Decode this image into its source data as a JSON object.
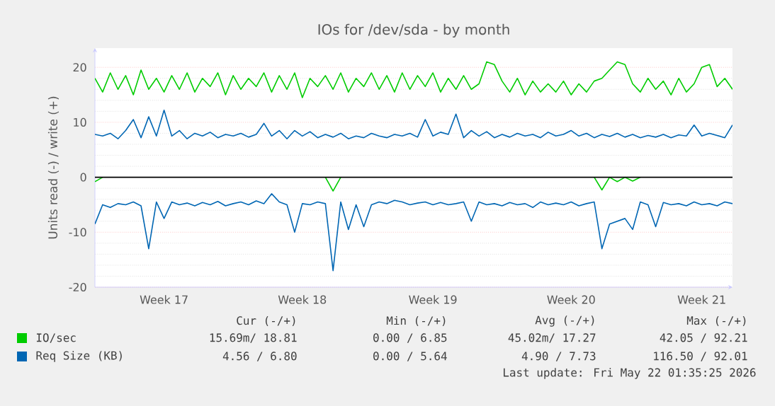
{
  "chart_data": {
    "type": "line",
    "title": "IOs for /dev/sda - by month",
    "ylabel": "Units read (-) / write (+)",
    "categories": [
      null,
      null,
      null,
      null,
      null,
      null,
      null,
      null,
      null,
      "Week 17",
      null,
      null,
      null,
      null,
      null,
      null,
      null,
      null,
      null,
      null,
      null,
      null,
      null,
      null,
      null,
      null,
      null,
      "Week 18",
      null,
      null,
      null,
      null,
      null,
      null,
      null,
      null,
      null,
      null,
      null,
      null,
      null,
      null,
      null,
      null,
      "Week 19",
      null,
      null,
      null,
      null,
      null,
      null,
      null,
      null,
      null,
      null,
      null,
      null,
      null,
      null,
      null,
      null,
      null,
      "Week 20",
      null,
      null,
      null,
      null,
      null,
      null,
      null,
      null,
      null,
      null,
      null,
      null,
      null,
      null,
      null,
      null,
      "Week 21",
      null,
      null,
      null,
      null
    ],
    "series": [
      {
        "name": "IO/sec",
        "color": "#00cc00",
        "values": [
          18,
          15.5,
          19,
          16,
          18.5,
          15,
          19.5,
          16,
          18,
          15.5,
          18.5,
          16,
          19,
          15.5,
          18,
          16.5,
          19,
          15,
          18.5,
          16,
          18,
          16.5,
          19,
          15.5,
          18.5,
          16,
          19,
          14.5,
          18,
          16.5,
          18.5,
          16,
          19,
          15.5,
          18,
          16.5,
          19,
          16,
          18.5,
          15.5,
          19,
          16,
          18.5,
          16.5,
          19,
          15.5,
          18,
          16,
          18.5,
          16,
          17,
          21,
          20.5,
          17.5,
          15.5,
          18,
          15,
          17.5,
          15.5,
          17,
          15.5,
          17.5,
          15,
          17,
          15.5,
          17.5,
          18,
          19.5,
          21,
          20.5,
          17,
          15.5,
          18,
          16,
          17.5,
          15,
          18,
          15.5,
          17,
          20,
          20.5,
          16.5,
          18,
          16
        ]
      },
      {
        "color": "#00cc00",
        "values": [
          -0.8,
          0,
          null,
          null,
          null,
          null,
          null,
          null,
          null,
          null,
          null,
          null,
          null,
          null,
          null,
          null,
          null,
          null,
          null,
          null,
          null,
          null,
          null,
          null,
          null,
          null,
          null,
          null,
          null,
          null,
          0,
          -2.5,
          0,
          null,
          null,
          null,
          null,
          null,
          null,
          null,
          null,
          null,
          null,
          null,
          null,
          null,
          null,
          null,
          null,
          null,
          null,
          null,
          null,
          null,
          null,
          null,
          null,
          null,
          null,
          null,
          null,
          null,
          null,
          null,
          null,
          0,
          -2.3,
          0,
          -0.8,
          0,
          -0.7,
          0,
          null,
          null,
          null,
          null,
          null,
          null,
          null,
          null,
          null,
          null,
          null,
          null
        ]
      },
      {
        "name": "Req Size (KB)",
        "color": "#0066b3",
        "values": [
          7.8,
          7.5,
          8,
          7,
          8.5,
          10.5,
          7.2,
          11,
          7.5,
          12.2,
          7.5,
          8.5,
          7,
          8,
          7.5,
          8.2,
          7.2,
          7.8,
          7.5,
          8,
          7.3,
          7.8,
          9.8,
          7.5,
          8.5,
          7,
          8.5,
          7.5,
          8.3,
          7.2,
          7.8,
          7.3,
          8,
          7,
          7.5,
          7.2,
          8,
          7.5,
          7.2,
          7.8,
          7.5,
          8,
          7.3,
          10.5,
          7.5,
          8.2,
          7.8,
          11.5,
          7.2,
          8.5,
          7.5,
          8.3,
          7.2,
          7.8,
          7.3,
          8,
          7.5,
          7.8,
          7.2,
          8.2,
          7.5,
          7.8,
          8.5,
          7.5,
          8,
          7.2,
          7.8,
          7.4,
          8,
          7.3,
          7.8,
          7.2,
          7.6,
          7.3,
          7.8,
          7.2,
          7.7,
          7.5,
          9.5,
          7.5,
          8,
          7.6,
          7.2,
          9.5
        ]
      },
      {
        "color": "#0066b3",
        "values": [
          -8.5,
          -5,
          -5.5,
          -4.8,
          -5,
          -4.5,
          -5.2,
          -13,
          -4.5,
          -7.5,
          -4.5,
          -5,
          -4.7,
          -5.2,
          -4.6,
          -5,
          -4.4,
          -5.2,
          -4.8,
          -4.5,
          -5,
          -4.3,
          -4.8,
          -3,
          -4.5,
          -5,
          -10,
          -4.8,
          -5,
          -4.5,
          -4.8,
          -17,
          -4.5,
          -9.5,
          -5,
          -9,
          -5,
          -4.5,
          -4.8,
          -4.2,
          -4.5,
          -5,
          -4.7,
          -4.5,
          -5,
          -4.6,
          -5,
          -4.8,
          -4.5,
          -8,
          -4.5,
          -5,
          -4.8,
          -5.2,
          -4.6,
          -5,
          -4.8,
          -5.5,
          -4.5,
          -5,
          -4.7,
          -5,
          -4.5,
          -5.2,
          -4.8,
          -4.5,
          -13,
          -8.5,
          -8,
          -7.5,
          -9.5,
          -4.5,
          -5,
          -9,
          -4.6,
          -5,
          -4.8,
          -5.2,
          -4.5,
          -5,
          -4.8,
          -5.2,
          -4.5,
          -4.8
        ]
      }
    ],
    "ylim": [
      -20,
      23.5
    ],
    "yticks": [
      -20,
      -10,
      0,
      10,
      20
    ],
    "grid": "y",
    "legend": "bottom",
    "ref_lines": [
      {
        "axis": "y",
        "value": 0,
        "color": "#000000"
      }
    ],
    "annotations": [
      "Cur (-/+)",
      "Min (-/+)",
      "Avg (-/+)",
      "Max (-/+)",
      "15.69m/ 18.81",
      "0.00 /  6.85",
      "45.02m/ 17.27",
      "42.05 / 92.21",
      "4.56 /  6.80",
      "0.00 /  5.64",
      "4.90 /  7.73",
      "116.50 / 92.01",
      "Last update: Fri May 22 01:35:25 2026"
    ]
  }
}
